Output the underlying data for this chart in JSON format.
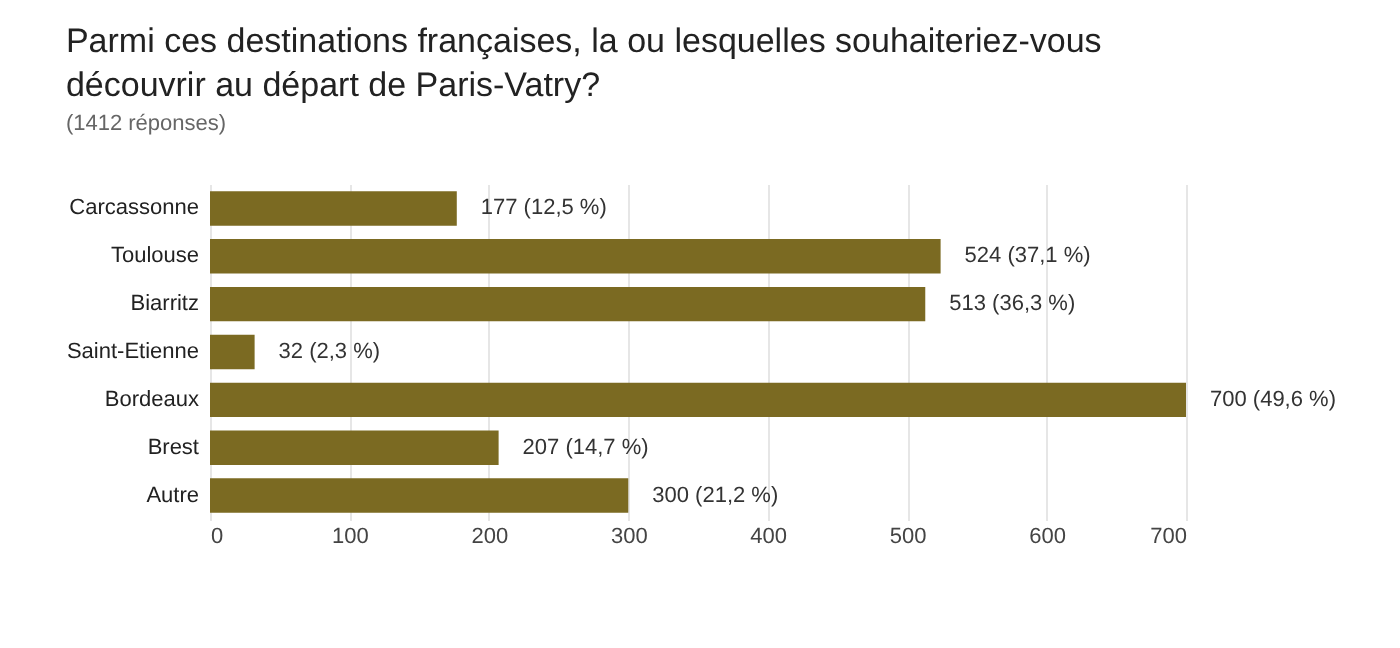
{
  "chart_data": {
    "type": "bar",
    "orientation": "horizontal",
    "title": "Parmi ces destinations françaises, la ou lesquelles souhaiteriez-vous découvrir au départ de Paris-Vatry?",
    "subtitle": "(1412 réponses)",
    "categories": [
      "Carcassonne",
      "Toulouse",
      "Biarritz",
      "Saint-Etienne",
      "Bordeaux",
      "Brest",
      "Autre"
    ],
    "values": [
      177,
      524,
      513,
      32,
      700,
      207,
      300
    ],
    "value_labels": [
      "177 (12,5 %)",
      "524 (37,1 %)",
      "513 (36,3 %)",
      "32 (2,3 %)",
      "700 (49,6 %)",
      "207 (14,7 %)",
      "300 (21,2 %)"
    ],
    "color": "#7b6a22",
    "xlim": [
      0,
      700
    ],
    "xticks": [
      0,
      100,
      200,
      300,
      400,
      500,
      600,
      700
    ],
    "grid": "x"
  }
}
